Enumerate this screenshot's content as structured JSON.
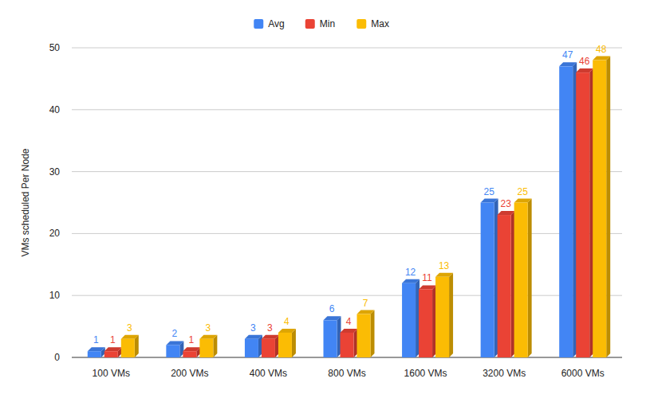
{
  "chart_data": {
    "type": "bar",
    "y_label": "VMs scheduled Per Node",
    "categories": [
      "100 VMs",
      "200 VMs",
      "400 VMs",
      "800 VMs",
      "1600 VMs",
      "3200 VMs",
      "6000 VMs"
    ],
    "series": [
      {
        "name": "Avg",
        "color": "#4285f4",
        "values": [
          1,
          2,
          3,
          6,
          12,
          25,
          47
        ]
      },
      {
        "name": "Min",
        "color": "#ea4335",
        "values": [
          1,
          1,
          3,
          4,
          11,
          23,
          46
        ]
      },
      {
        "name": "Max",
        "color": "#fbbc04",
        "values": [
          3,
          3,
          4,
          7,
          13,
          25,
          48
        ]
      }
    ],
    "ylim": [
      0,
      50
    ],
    "yticks": [
      0,
      10,
      20,
      30,
      40,
      50
    ],
    "grid": true,
    "legend": "top",
    "data_labels": true
  }
}
